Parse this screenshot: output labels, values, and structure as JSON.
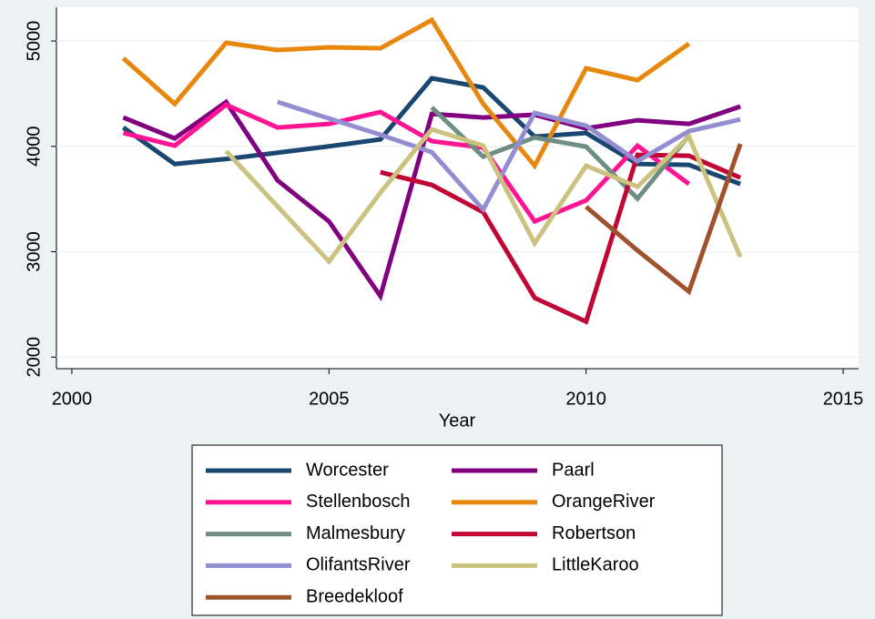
{
  "chart_data": {
    "type": "line",
    "x_label": "Year",
    "x": [
      2001,
      2002,
      2003,
      2004,
      2005,
      2006,
      2007,
      2008,
      2009,
      2010,
      2011,
      2012,
      2013
    ],
    "xlim": [
      1999.7,
      2015.3
    ],
    "xticks": [
      2000,
      2005,
      2010,
      2015
    ],
    "ylim": [
      1890,
      5320
    ],
    "yticks": [
      2000,
      3000,
      4000,
      5000
    ],
    "grid": true,
    "series": [
      {
        "name": "Worcester",
        "color": "#1a476f",
        "values": [
          4179,
          3833,
          3880,
          3940,
          4000,
          4066,
          4646,
          4559,
          4092,
          4127,
          3833,
          3824,
          3643
        ]
      },
      {
        "name": "Paarl",
        "color": "#800080",
        "values": [
          4274,
          4075,
          4421,
          3677,
          3288,
          2579,
          4308,
          4274,
          4300,
          4170,
          4248,
          4213,
          4378
        ]
      },
      {
        "name": "Stellenbosch",
        "color": "#ff1493",
        "values": [
          4127,
          4006,
          4395,
          4179,
          4213,
          4326,
          4049,
          3988,
          3288,
          3487,
          4006,
          3643,
          null
        ]
      },
      {
        "name": "OrangeRiver",
        "color": "#e8870e",
        "values": [
          4836,
          4403,
          4983,
          4914,
          4940,
          4931,
          5199,
          4403,
          3816,
          4741,
          4628,
          4974,
          null
        ]
      },
      {
        "name": "Malmesbury",
        "color": "#6e8e84",
        "values": [
          null,
          null,
          null,
          null,
          null,
          null,
          4369,
          3902,
          4084,
          3997,
          3504,
          4100,
          null
        ]
      },
      {
        "name": "Robertson",
        "color": "#c10534",
        "values": [
          null,
          null,
          null,
          null,
          null,
          3755,
          3634,
          3375,
          2562,
          2337,
          3919,
          3911,
          3703
        ]
      },
      {
        "name": "OlifantsRiver",
        "color": "#938dd2",
        "values": [
          null,
          null,
          null,
          4421,
          4265,
          4110,
          3945,
          3400,
          4317,
          4196,
          3859,
          4144,
          4256
        ]
      },
      {
        "name": "LittleKaroo",
        "color": "#cac27e",
        "values": [
          null,
          null,
          3954,
          3430,
          2908,
          3560,
          4161,
          4006,
          3081,
          3816,
          3617,
          4092,
          2951
        ]
      },
      {
        "name": "Breedekloof",
        "color": "#a0522d",
        "values": [
          null,
          null,
          null,
          null,
          null,
          null,
          null,
          null,
          null,
          3427,
          3012,
          2622,
          4023
        ]
      }
    ]
  }
}
